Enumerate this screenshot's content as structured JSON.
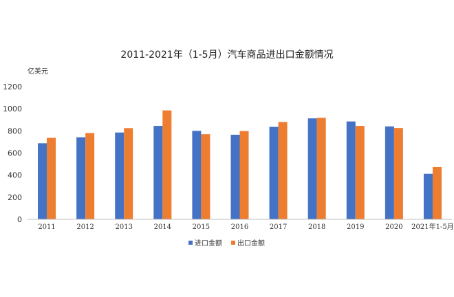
{
  "chart_data": {
    "type": "bar",
    "title": "2011-2021年（1-5月）汽车商品进出口金额情况",
    "ylabel": "亿美元",
    "xlabel": "",
    "ylim": [
      0,
      1200
    ],
    "yticks": [
      0,
      200,
      400,
      600,
      800,
      1000,
      1200
    ],
    "grid": false,
    "legend_position": "bottom",
    "categories": [
      "2011",
      "2012",
      "2013",
      "2014",
      "2015",
      "2016",
      "2017",
      "2018",
      "2019",
      "2020",
      "2021年1-5月"
    ],
    "series": [
      {
        "name": "进口金额",
        "color": "#4472C4",
        "values": [
          688,
          742,
          785,
          845,
          800,
          765,
          836,
          913,
          885,
          840,
          412
        ]
      },
      {
        "name": "出口金额",
        "color": "#ED7D31",
        "values": [
          737,
          780,
          825,
          985,
          770,
          798,
          880,
          918,
          845,
          826,
          473
        ]
      }
    ]
  }
}
